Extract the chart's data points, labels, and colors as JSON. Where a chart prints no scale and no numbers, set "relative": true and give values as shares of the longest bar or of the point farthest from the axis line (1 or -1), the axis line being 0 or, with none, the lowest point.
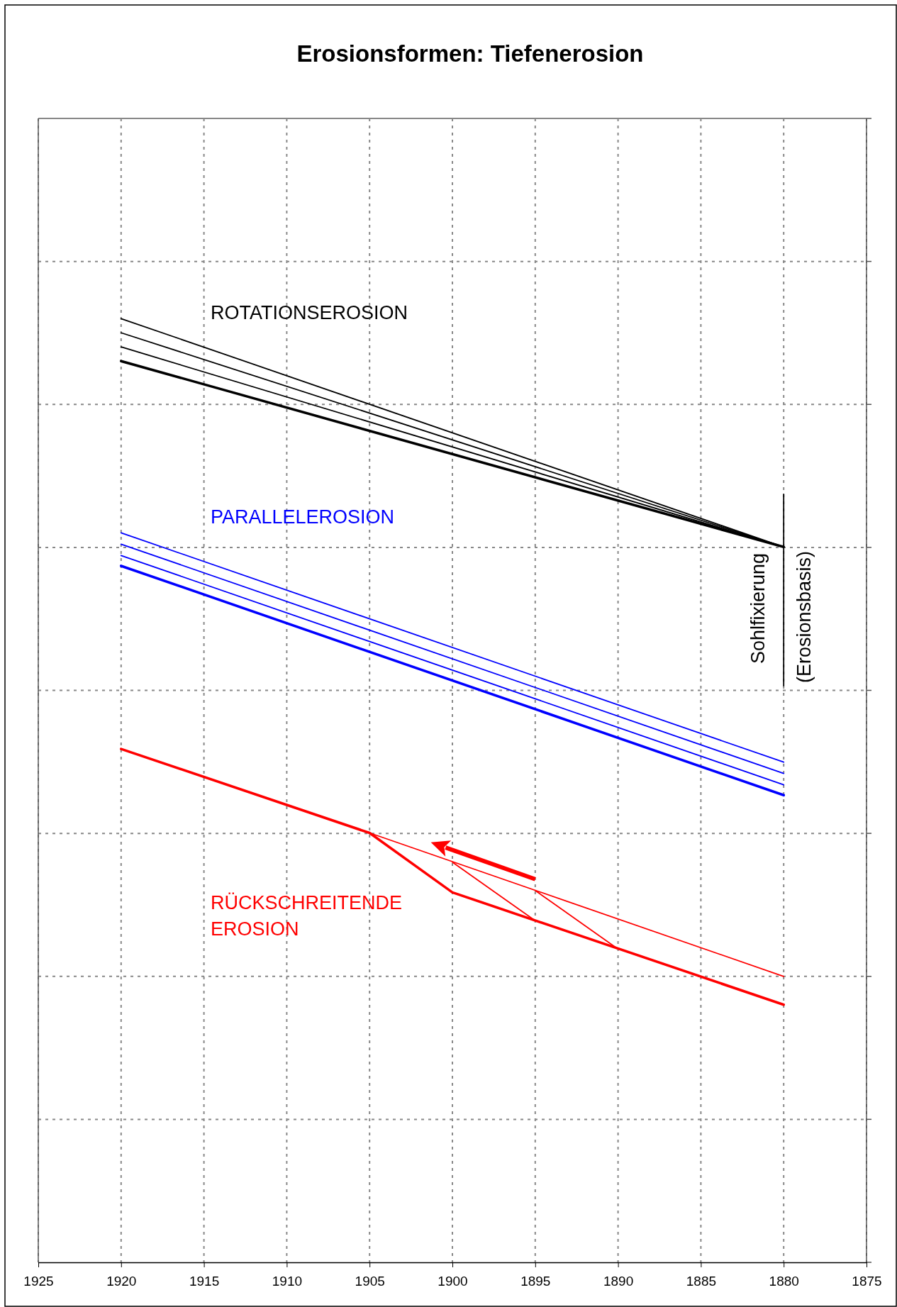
{
  "chart_data": {
    "type": "line",
    "title": "Erosionsformen: Tiefenerosion",
    "relative": true,
    "grid": true,
    "xlim": [
      1925,
      1875
    ],
    "xticks": [
      1925,
      1920,
      1915,
      1910,
      1905,
      1900,
      1895,
      1890,
      1885,
      1880,
      1875
    ],
    "annotations": [
      "ROTATIONSEROSION",
      "PARALLELEROSION",
      "RÜCKSCHREITENDE EROSION",
      "Sohlfixierung",
      "(Erosionsbasis)"
    ],
    "series": [
      {
        "color": "#000000",
        "x": [
          1920,
          1880
        ],
        "values": [
          1,
          0.758
        ]
      },
      {
        "color": "#000000",
        "x": [
          1920,
          1880
        ],
        "values": [
          0.985,
          0.758
        ]
      },
      {
        "color": "#000000",
        "x": [
          1920,
          1880
        ],
        "values": [
          0.97,
          0.758
        ]
      },
      {
        "color": "#000000",
        "x": [
          1920,
          1880
        ],
        "values": [
          0.955,
          0.758
        ]
      },
      {
        "color": "#0000ff",
        "x": [
          1920,
          1880
        ],
        "values": [
          0.773,
          0.53
        ]
      },
      {
        "color": "#0000ff",
        "x": [
          1920,
          1880
        ],
        "values": [
          0.761,
          0.518
        ]
      },
      {
        "color": "#0000ff",
        "x": [
          1920,
          1880
        ],
        "values": [
          0.749,
          0.506
        ]
      },
      {
        "color": "#0000ff",
        "x": [
          1920,
          1880
        ],
        "values": [
          0.738,
          0.495
        ]
      },
      {
        "color": "#ff0000",
        "x": [
          1920,
          1905,
          1900,
          1880
        ],
        "values": [
          0.544,
          0.455,
          0.392,
          0.273
        ]
      },
      {
        "color": "#ff0000",
        "x": [
          1905,
          1880
        ],
        "values": [
          0.455,
          0.303
        ]
      },
      {
        "color": "#ff0000",
        "x": [
          1900,
          1895
        ],
        "values": [
          0.424,
          0.362
        ]
      },
      {
        "color": "#ff0000",
        "x": [
          1895,
          1890
        ],
        "values": [
          0.394,
          0.332
        ]
      },
      {
        "color": "#000000",
        "x": [
          1880,
          1880
        ],
        "values": [
          0.814,
          0.611
        ]
      }
    ]
  }
}
